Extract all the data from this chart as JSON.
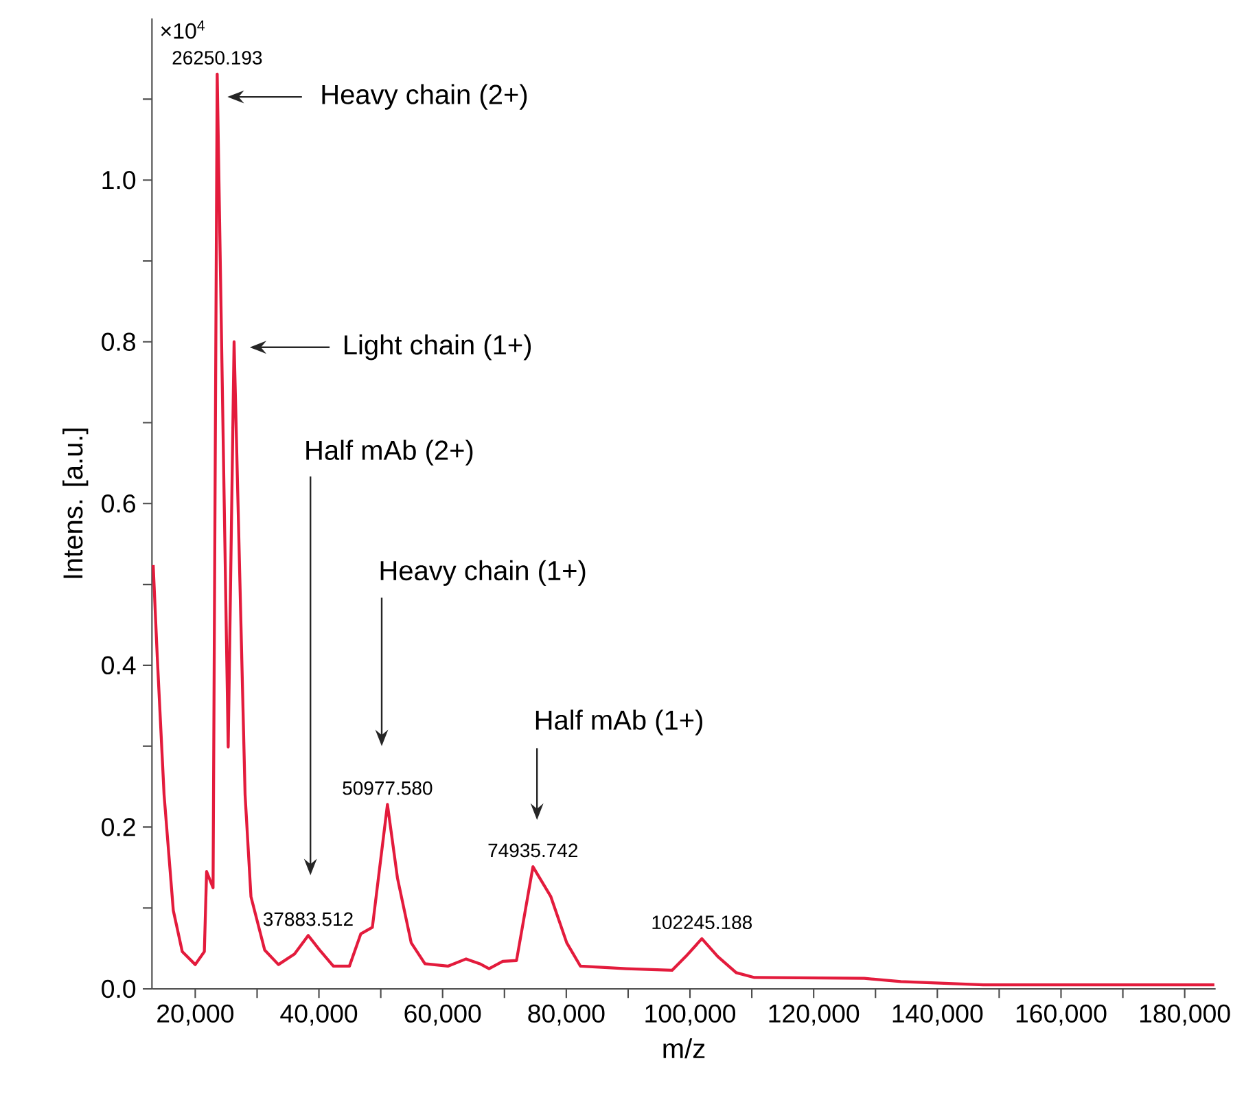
{
  "chart_data": {
    "type": "line",
    "xlabel": "m/z",
    "ylabel": "Intens. [a.u.]",
    "color": "#e31b3c",
    "xlim": [
      13000,
      185000
    ],
    "ylim": [
      0,
      1.2
    ],
    "xticks": [
      {
        "value": 20000,
        "label": "20,000"
      },
      {
        "value": 30000,
        "label": null
      },
      {
        "value": 40000,
        "label": "40,000"
      },
      {
        "value": 50000,
        "label": null
      },
      {
        "value": 60000,
        "label": "60,000"
      },
      {
        "value": 70000,
        "label": null
      },
      {
        "value": 80000,
        "label": "80,000"
      },
      {
        "value": 90000,
        "label": null
      },
      {
        "value": 100000,
        "label": "100,000"
      },
      {
        "value": 110000,
        "label": null
      },
      {
        "value": 120000,
        "label": "120,000"
      },
      {
        "value": 130000,
        "label": null
      },
      {
        "value": 140000,
        "label": "140,000"
      },
      {
        "value": 150000,
        "label": null
      },
      {
        "value": 160000,
        "label": "160,000"
      },
      {
        "value": 170000,
        "label": null
      },
      {
        "value": 180000,
        "label": "180,000"
      }
    ],
    "yticks": [
      {
        "value": 0,
        "label": "0.0"
      },
      {
        "value": 0.1,
        "label": null
      },
      0.2,
      {
        "value": 0.3,
        "label": null
      },
      0.4,
      {
        "value": 0.5,
        "label": null
      },
      0.6,
      {
        "value": 0.7,
        "label": null
      },
      0.8,
      {
        "value": 0.9,
        "label": null
      },
      {
        "value": 1,
        "label": "1.0"
      },
      {
        "value": 1.1,
        "label": null
      }
    ],
    "x": [
      13200,
      13860,
      14960,
      16450,
      17900,
      20000,
      21470,
      21840,
      22880,
      23550,
      25330,
      26280,
      28060,
      29010,
      31230,
      33450,
      36050,
      38270,
      40110,
      42330,
      44930,
      46770,
      48640,
      51080,
      52700,
      54920,
      57140,
      60850,
      63800,
      66020,
      67510,
      69730,
      71950,
      74610,
      77500,
      80070,
      82290,
      89700,
      97100,
      99320,
      101920,
      104490,
      107470,
      110420,
      128180,
      134100,
      147430,
      184800
    ],
    "values": [
      0.524,
      0.41,
      0.24,
      0.097,
      0.046,
      0.03,
      0.046,
      0.145,
      0.125,
      1.131,
      0.299,
      0.8,
      0.24,
      0.114,
      0.048,
      0.03,
      0.043,
      0.066,
      0.048,
      0.028,
      0.028,
      0.068,
      0.076,
      0.228,
      0.137,
      0.057,
      0.031,
      0.028,
      0.037,
      0.031,
      0.025,
      0.034,
      0.035,
      0.151,
      0.114,
      0.057,
      0.028,
      0.025,
      0.023,
      0.04,
      0.062,
      0.04,
      0.02,
      0.014,
      0.013,
      0.009,
      0.005,
      0.005
    ],
    "annotations": [
      "×10$^{4}$",
      {
        "text": "26250.193",
        "x": 23550,
        "y": 1.131
      },
      {
        "text": "37883.512",
        "x": 38270,
        "y": 0.066
      },
      {
        "text": "50977.580",
        "x": 51080,
        "y": 0.228
      },
      {
        "text": "74935.742",
        "x": 74610,
        "y": 0.151
      },
      {
        "text": "102245.188",
        "x": 101920,
        "y": 0.062
      },
      "Heavy chain (2+)",
      "Light chain (1+)",
      "Half mAb (2+)",
      "Heavy chain (1+)",
      "Half mAb (1+)"
    ]
  }
}
